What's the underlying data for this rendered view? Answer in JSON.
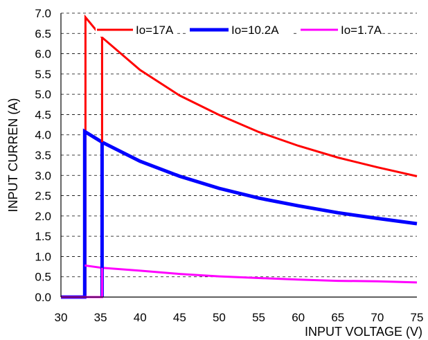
{
  "chart_data": {
    "type": "line",
    "title": "",
    "xlabel": "INPUT VOLTAGE (V)",
    "ylabel": "INPUT CURREN (A)",
    "xlim": [
      30,
      75
    ],
    "ylim": [
      0.0,
      7.0
    ],
    "x_ticks": [
      30,
      35,
      40,
      45,
      50,
      55,
      60,
      65,
      70,
      75
    ],
    "x_tick_labels": [
      "30",
      "35",
      "40",
      "45",
      "50",
      "55",
      "60",
      "65",
      "70",
      "75"
    ],
    "y_ticks": [
      0.0,
      0.5,
      1.0,
      1.5,
      2.0,
      2.5,
      3.0,
      3.5,
      4.0,
      4.5,
      5.0,
      5.5,
      6.0,
      6.5,
      7.0
    ],
    "y_tick_labels": [
      "0.0",
      "0.5",
      "1.0",
      "1.5",
      "2.0",
      "2.5",
      "3.0",
      "3.5",
      "4.0",
      "4.5",
      "5.0",
      "5.5",
      "6.0",
      "6.5",
      "7.0"
    ],
    "grid": {
      "horizontal": true,
      "vertical": false,
      "style": "dashed"
    },
    "legend_position": "top-right",
    "series": [
      {
        "name": "Io=17A",
        "color": "#ff0000",
        "line_width": "medium",
        "points": [
          [
            30,
            0.0
          ],
          [
            33.1,
            0.0
          ],
          [
            33.1,
            6.9
          ],
          [
            35.2,
            6.4
          ],
          [
            40,
            5.6
          ],
          [
            45,
            4.97
          ],
          [
            50,
            4.49
          ],
          [
            55,
            4.07
          ],
          [
            60,
            3.73
          ],
          [
            65,
            3.44
          ],
          [
            70,
            3.2
          ],
          [
            75,
            2.98
          ]
        ]
      },
      {
        "name": "Io=10.2A",
        "color": "#0000ff",
        "line_width": "thick",
        "points": [
          [
            30,
            0.0
          ],
          [
            33.0,
            0.0
          ],
          [
            33.0,
            4.08
          ],
          [
            35.2,
            3.82
          ],
          [
            40,
            3.35
          ],
          [
            45,
            2.98
          ],
          [
            50,
            2.68
          ],
          [
            55,
            2.44
          ],
          [
            60,
            2.25
          ],
          [
            65,
            2.08
          ],
          [
            70,
            1.94
          ],
          [
            75,
            1.81
          ]
        ]
      },
      {
        "name": "Io=1.7A",
        "color": "#ff00ff",
        "line_width": "medium",
        "points": [
          [
            33.0,
            0.78
          ],
          [
            35.2,
            0.72
          ],
          [
            40,
            0.65
          ],
          [
            45,
            0.57
          ],
          [
            50,
            0.51
          ],
          [
            55,
            0.47
          ],
          [
            60,
            0.43
          ],
          [
            65,
            0.4
          ],
          [
            70,
            0.39
          ],
          [
            75,
            0.36
          ]
        ]
      },
      {
        "name": "Io=17A",
        "color": "#ff0000",
        "line_width": "medium",
        "segment": true,
        "points": [
          [
            35.2,
            0.0
          ],
          [
            35.2,
            6.4
          ]
        ]
      },
      {
        "name": "Io=10.2A",
        "color": "#0000ff",
        "line_width": "thick",
        "segment": true,
        "points": [
          [
            35.2,
            0.0
          ],
          [
            35.2,
            3.82
          ]
        ]
      },
      {
        "name": "Io=1.7A",
        "color": "#ff00ff",
        "line_width": "medium",
        "segment": true,
        "points": [
          [
            30,
            0.0
          ],
          [
            35.2,
            0.0
          ],
          [
            35.2,
            0.72
          ]
        ]
      }
    ],
    "legend": [
      {
        "label": "Io=17A",
        "color": "#ff0000"
      },
      {
        "label": "Io=10.2A",
        "color": "#0000ff"
      },
      {
        "label": "Io=1.7A",
        "color": "#ff00ff"
      }
    ]
  }
}
